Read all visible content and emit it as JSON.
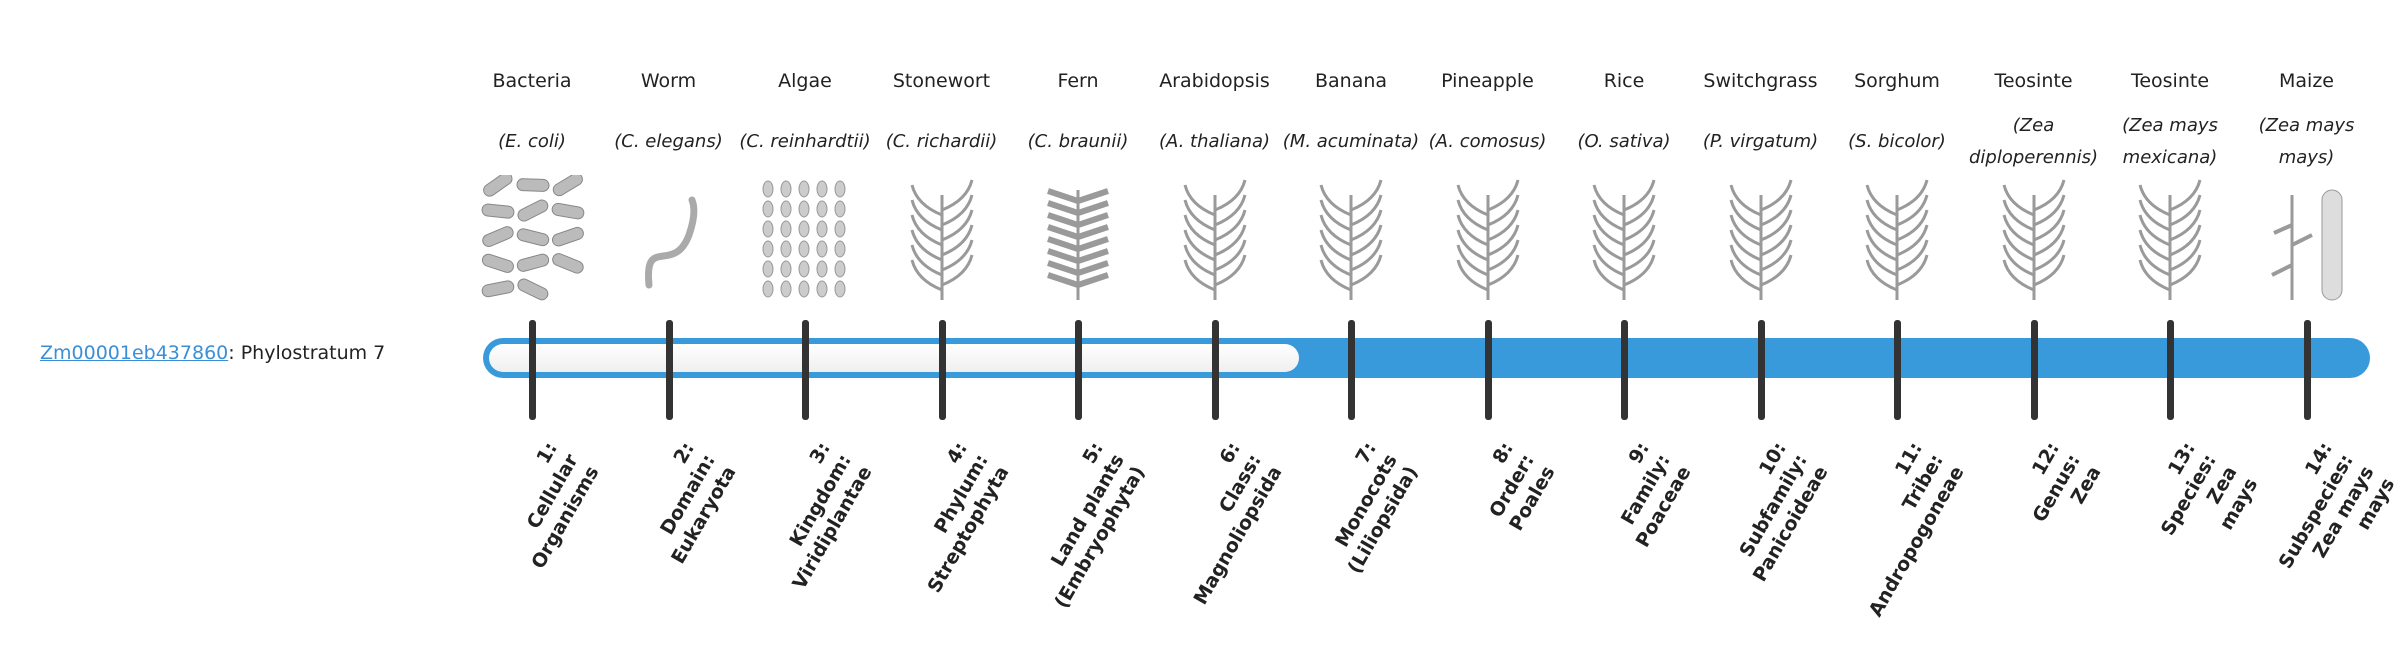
{
  "gene": {
    "id": "Zm00001eb437860",
    "separator": ":",
    "stratum_text": " Phylostratum 7"
  },
  "progress": {
    "current_stratum": 7,
    "total_strata": 14,
    "filled_fraction": 0.56
  },
  "colors": {
    "accent": "#3899db",
    "tick": "#333333",
    "link": "#3a8fd6"
  },
  "strata": [
    {
      "common": "Bacteria",
      "species": "(E. coli)",
      "icon": "bacteria-icon",
      "label": [
        "1:",
        "Cellular",
        "Organisms"
      ]
    },
    {
      "common": "Worm",
      "species": "(C. elegans)",
      "icon": "worm-icon",
      "label": [
        "2:",
        "Domain:",
        "Eukaryota"
      ]
    },
    {
      "common": "Algae",
      "species": "(C. reinhardtii)",
      "icon": "algae-icon",
      "label": [
        "3:",
        "Kingdom:",
        "Viridiplantae"
      ]
    },
    {
      "common": "Stonewort",
      "species": "(C. richardii)",
      "icon": "stonewort-icon",
      "label": [
        "4:",
        "Phylum:",
        "Streptophyta"
      ]
    },
    {
      "common": "Fern",
      "species": "(C. braunii)",
      "icon": "fern-icon",
      "label": [
        "5:",
        "Land plants",
        "(Embryophyta)"
      ]
    },
    {
      "common": "Arabidopsis",
      "species": "(A. thaliana)",
      "icon": "arabidopsis-icon",
      "label": [
        "6:",
        "Class:",
        "Magnoliopsida"
      ]
    },
    {
      "common": "Banana",
      "species": "(M. acuminata)",
      "icon": "banana-icon",
      "label": [
        "7:",
        "Monocots",
        "(Liliopsida)"
      ]
    },
    {
      "common": "Pineapple",
      "species": "(A. comosus)",
      "icon": "pineapple-icon",
      "label": [
        "8:",
        "Order:",
        "Poales"
      ]
    },
    {
      "common": "Rice",
      "species": "(O. sativa)",
      "icon": "rice-icon",
      "label": [
        "9:",
        "Family:",
        "Poaceae"
      ]
    },
    {
      "common": "Switchgrass",
      "species": "(P. virgatum)",
      "icon": "switchgrass-icon",
      "label": [
        "10:",
        "Subfamily:",
        "Panicoideae"
      ]
    },
    {
      "common": "Sorghum",
      "species": "(S. bicolor)",
      "icon": "sorghum-icon",
      "label": [
        "11:",
        "Tribe:",
        "Andropogoneae"
      ]
    },
    {
      "common": "Teosinte",
      "species": "(Zea diploperennis)",
      "icon": "teosinte-icon",
      "label": [
        "12:",
        "Genus:",
        "Zea"
      ]
    },
    {
      "common": "Teosinte",
      "species": "(Zea mays mexicana)",
      "icon": "teosinte-mexicana-icon",
      "label": [
        "13:",
        "Species:",
        "Zea",
        "mays"
      ]
    },
    {
      "common": "Maize",
      "species": "(Zea mays mays)",
      "icon": "maize-icon",
      "label": [
        "14:",
        "Subspecies:",
        "Zea mays",
        "mays"
      ]
    }
  ]
}
